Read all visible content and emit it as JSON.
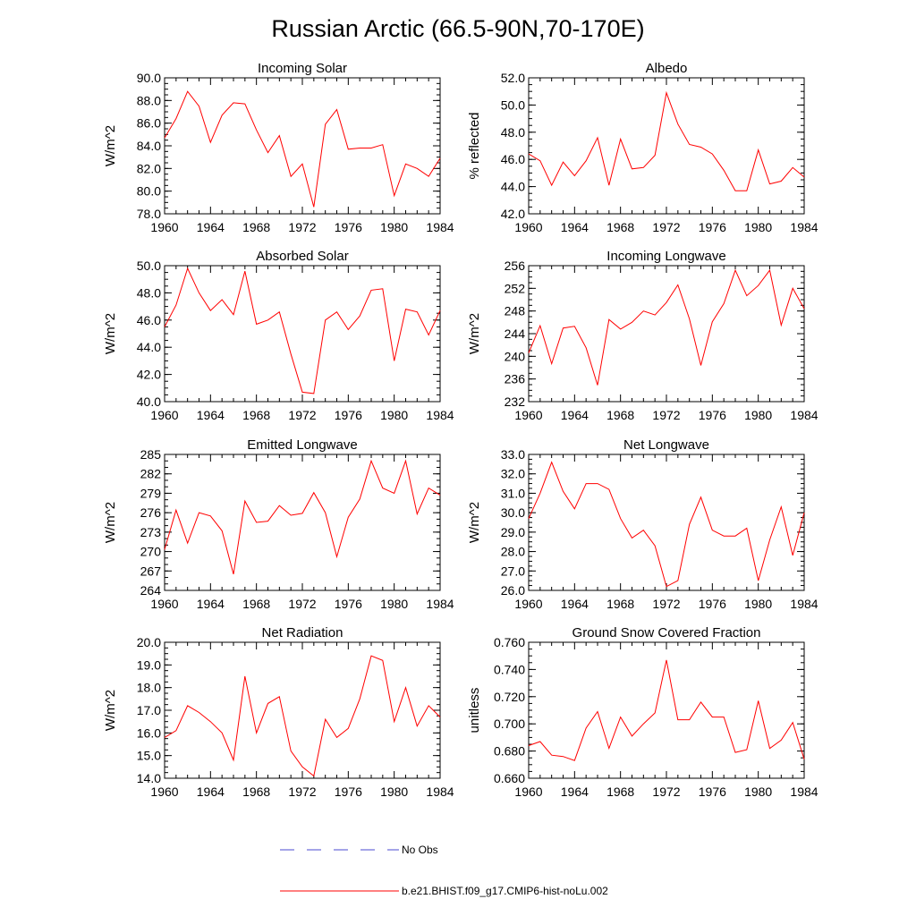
{
  "figure_title": "Russian Arctic (66.5-90N,70-170E)",
  "legend": {
    "obs_label": "No Obs",
    "model_label": "b.e21.BHIST.f09_g17.CMIP6-hist-noLu.002",
    "obs_color": "#4a4ad0",
    "model_color": "#ff0000"
  },
  "chart_data": [
    {
      "type": "line",
      "title": "Incoming Solar",
      "ylabel": "W/m^2",
      "xlim": [
        1960,
        1984
      ],
      "xticks": [
        1960,
        1964,
        1968,
        1972,
        1976,
        1980,
        1984
      ],
      "ylim": [
        78.0,
        90.0
      ],
      "yticks": [
        "78.0",
        "80.0",
        "82.0",
        "84.0",
        "86.0",
        "88.0",
        "90.0"
      ],
      "minor_y_step": 0.5,
      "x": [
        1960,
        1961,
        1962,
        1963,
        1964,
        1965,
        1966,
        1967,
        1968,
        1969,
        1970,
        1971,
        1972,
        1973,
        1974,
        1975,
        1976,
        1977,
        1978,
        1979,
        1980,
        1981,
        1982,
        1983,
        1984
      ],
      "values": [
        84.7,
        86.4,
        88.8,
        87.5,
        84.3,
        86.7,
        87.8,
        87.7,
        85.4,
        83.4,
        84.9,
        81.3,
        82.4,
        78.6,
        85.9,
        87.2,
        83.7,
        83.8,
        83.8,
        84.1,
        79.6,
        82.4,
        82.0,
        81.3,
        82.9
      ]
    },
    {
      "type": "line",
      "title": "Albedo",
      "ylabel": "% reflected",
      "xlim": [
        1960,
        1984
      ],
      "xticks": [
        1960,
        1964,
        1968,
        1972,
        1976,
        1980,
        1984
      ],
      "ylim": [
        42.0,
        52.0
      ],
      "yticks": [
        "42.0",
        "44.0",
        "46.0",
        "48.0",
        "50.0",
        "52.0"
      ],
      "minor_y_step": 0.5,
      "x": [
        1960,
        1961,
        1962,
        1963,
        1964,
        1965,
        1966,
        1967,
        1968,
        1969,
        1970,
        1971,
        1972,
        1973,
        1974,
        1975,
        1976,
        1977,
        1978,
        1979,
        1980,
        1981,
        1982,
        1983,
        1984
      ],
      "values": [
        46.4,
        45.9,
        44.1,
        45.8,
        44.8,
        45.9,
        47.6,
        44.1,
        47.5,
        45.3,
        45.4,
        46.3,
        50.9,
        48.6,
        47.1,
        46.9,
        46.4,
        45.2,
        43.7,
        43.7,
        46.7,
        44.2,
        44.4,
        45.4,
        44.7
      ]
    },
    {
      "type": "line",
      "title": "Absorbed Solar",
      "ylabel": "W/m^2",
      "xlim": [
        1960,
        1984
      ],
      "xticks": [
        1960,
        1964,
        1968,
        1972,
        1976,
        1980,
        1984
      ],
      "ylim": [
        40.0,
        50.0
      ],
      "yticks": [
        "40.0",
        "42.0",
        "44.0",
        "46.0",
        "48.0",
        "50.0"
      ],
      "minor_y_step": 0.5,
      "x": [
        1960,
        1961,
        1962,
        1963,
        1964,
        1965,
        1966,
        1967,
        1968,
        1969,
        1970,
        1971,
        1972,
        1973,
        1974,
        1975,
        1976,
        1977,
        1978,
        1979,
        1980,
        1981,
        1982,
        1983,
        1984
      ],
      "values": [
        45.5,
        47.1,
        49.8,
        48.0,
        46.7,
        47.5,
        46.4,
        49.6,
        45.7,
        46.0,
        46.6,
        43.5,
        40.7,
        40.6,
        46.0,
        46.6,
        45.3,
        46.3,
        48.2,
        48.3,
        43.0,
        46.8,
        46.6,
        44.9,
        46.7
      ]
    },
    {
      "type": "line",
      "title": "Incoming Longwave",
      "ylabel": "W/m^2",
      "xlim": [
        1960,
        1984
      ],
      "xticks": [
        1960,
        1964,
        1968,
        1972,
        1976,
        1980,
        1984
      ],
      "ylim": [
        232,
        256
      ],
      "yticks": [
        "232",
        "236",
        "240",
        "244",
        "248",
        "252",
        "256"
      ],
      "minor_y_step": 1,
      "x": [
        1960,
        1961,
        1962,
        1963,
        1964,
        1965,
        1966,
        1967,
        1968,
        1969,
        1970,
        1971,
        1972,
        1973,
        1974,
        1975,
        1976,
        1977,
        1978,
        1979,
        1980,
        1981,
        1982,
        1983,
        1984
      ],
      "values": [
        240.6,
        245.4,
        238.7,
        245.0,
        245.3,
        241.5,
        234.9,
        246.5,
        244.8,
        246.0,
        248.0,
        247.3,
        249.5,
        252.6,
        246.6,
        238.4,
        246.1,
        249.3,
        255.2,
        250.7,
        252.5,
        255.2,
        245.5,
        252.0,
        248.4
      ]
    },
    {
      "type": "line",
      "title": "Emitted Longwave",
      "ylabel": "W/m^2",
      "xlim": [
        1960,
        1984
      ],
      "xticks": [
        1960,
        1964,
        1968,
        1972,
        1976,
        1980,
        1984
      ],
      "ylim": [
        264,
        285
      ],
      "yticks": [
        "264",
        "267",
        "270",
        "273",
        "276",
        "279",
        "282",
        "285"
      ],
      "minor_y_step": 1,
      "x": [
        1960,
        1961,
        1962,
        1963,
        1964,
        1965,
        1966,
        1967,
        1968,
        1969,
        1970,
        1971,
        1972,
        1973,
        1974,
        1975,
        1976,
        1977,
        1978,
        1979,
        1980,
        1981,
        1982,
        1983,
        1984
      ],
      "values": [
        270.3,
        276.4,
        271.3,
        276.0,
        275.5,
        273.2,
        266.5,
        277.8,
        274.5,
        274.7,
        277.1,
        275.6,
        275.9,
        279.1,
        276.0,
        269.2,
        275.3,
        278.1,
        284.0,
        279.8,
        279.0,
        284.0,
        275.8,
        279.8,
        278.7
      ]
    },
    {
      "type": "line",
      "title": "Net Longwave",
      "ylabel": "W/m^2",
      "xlim": [
        1960,
        1984
      ],
      "xticks": [
        1960,
        1964,
        1968,
        1972,
        1976,
        1980,
        1984
      ],
      "ylim": [
        26.0,
        33.0
      ],
      "yticks": [
        "26.0",
        "27.0",
        "28.0",
        "29.0",
        "30.0",
        "31.0",
        "32.0",
        "33.0"
      ],
      "minor_y_step": 0.25,
      "x": [
        1960,
        1961,
        1962,
        1963,
        1964,
        1965,
        1966,
        1967,
        1968,
        1969,
        1970,
        1971,
        1972,
        1973,
        1974,
        1975,
        1976,
        1977,
        1978,
        1979,
        1980,
        1981,
        1982,
        1983,
        1984
      ],
      "values": [
        29.7,
        31.0,
        32.6,
        31.1,
        30.2,
        31.5,
        31.5,
        31.2,
        29.7,
        28.7,
        29.1,
        28.3,
        26.2,
        26.5,
        29.4,
        30.8,
        29.1,
        28.8,
        28.8,
        29.2,
        26.5,
        28.6,
        30.3,
        27.8,
        30.0
      ]
    },
    {
      "type": "line",
      "title": "Net Radiation",
      "ylabel": "W/m^2",
      "xlim": [
        1960,
        1984
      ],
      "xticks": [
        1960,
        1964,
        1968,
        1972,
        1976,
        1980,
        1984
      ],
      "ylim": [
        14.0,
        20.0
      ],
      "yticks": [
        "14.0",
        "15.0",
        "16.0",
        "17.0",
        "18.0",
        "19.0",
        "20.0"
      ],
      "minor_y_step": 0.25,
      "x": [
        1960,
        1961,
        1962,
        1963,
        1964,
        1965,
        1966,
        1967,
        1968,
        1969,
        1970,
        1971,
        1972,
        1973,
        1974,
        1975,
        1976,
        1977,
        1978,
        1979,
        1980,
        1981,
        1982,
        1983,
        1984
      ],
      "values": [
        15.8,
        16.1,
        17.2,
        16.9,
        16.5,
        16.0,
        14.8,
        18.5,
        16.0,
        17.3,
        17.6,
        15.2,
        14.5,
        14.1,
        16.6,
        15.8,
        16.2,
        17.5,
        19.4,
        19.2,
        16.5,
        18.0,
        16.3,
        17.2,
        16.7
      ]
    },
    {
      "type": "line",
      "title": "Ground Snow Covered Fraction",
      "ylabel": "unitless",
      "xlim": [
        1960,
        1984
      ],
      "xticks": [
        1960,
        1964,
        1968,
        1972,
        1976,
        1980,
        1984
      ],
      "ylim": [
        0.66,
        0.76
      ],
      "yticks": [
        "0.660",
        "0.680",
        "0.700",
        "0.720",
        "0.740",
        "0.760"
      ],
      "minor_y_step": 0.005,
      "x": [
        1960,
        1961,
        1962,
        1963,
        1964,
        1965,
        1966,
        1967,
        1968,
        1969,
        1970,
        1971,
        1972,
        1973,
        1974,
        1975,
        1976,
        1977,
        1978,
        1979,
        1980,
        1981,
        1982,
        1983,
        1984
      ],
      "values": [
        0.684,
        0.687,
        0.677,
        0.676,
        0.673,
        0.697,
        0.709,
        0.682,
        0.705,
        0.691,
        0.7,
        0.708,
        0.747,
        0.703,
        0.703,
        0.716,
        0.705,
        0.705,
        0.679,
        0.681,
        0.717,
        0.682,
        0.688,
        0.701,
        0.674
      ]
    }
  ]
}
